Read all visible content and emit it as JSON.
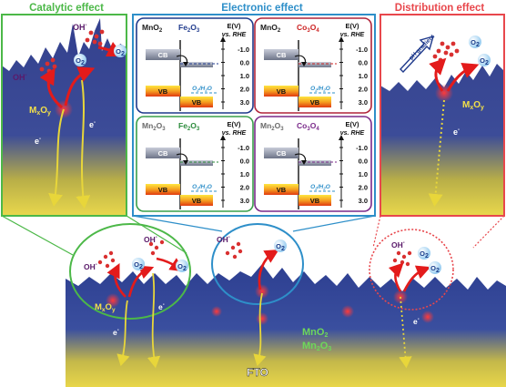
{
  "headers": {
    "catalytic": "Catalytic effect",
    "electronic": "Electronic effect",
    "distribution": "Distribution effect"
  },
  "colors": {
    "catalytic": "#4cb848",
    "electronic": "#2e8fc9",
    "distribution": "#e8474c",
    "oxide_primary": "#1a1a1a",
    "fe2o3": "#1f3a8c",
    "co3o4": "#cc2222",
    "mn2o3": "#6a6a6a",
    "co3o4_purple": "#7a2a8a"
  },
  "species": {
    "oh": "OH",
    "oh_sup": "-",
    "o2": "O",
    "o2_sub": "2",
    "electron": "e",
    "electron_sup": "-",
    "mxoy_m": "M",
    "mxoy_x": "x",
    "mxoy_o": "O",
    "mxoy_y": "y"
  },
  "electronic_panels": [
    {
      "a": "MnO",
      "a_sub": "2",
      "b": "Fe",
      "b_sub1": "2",
      "b_o": "O",
      "b_sub2": "3",
      "a_color": "#1a1a1a",
      "b_color": "#1f3a8c",
      "border": "#1f3a8c"
    },
    {
      "a": "MnO",
      "a_sub": "2",
      "b": "Co",
      "b_sub1": "3",
      "b_o": "O",
      "b_sub2": "4",
      "a_color": "#1a1a1a",
      "b_color": "#cc2222",
      "border": "#b0243a"
    },
    {
      "a": "Mn",
      "a_sub": "2",
      "a_o": "O",
      "a_sub2": "3",
      "b": "Fe",
      "b_sub1": "2",
      "b_o": "O",
      "b_sub2": "3",
      "a_color": "#6a6a6a",
      "b_color": "#2a8a3a",
      "border": "#3aa04a"
    },
    {
      "a": "Mn",
      "a_sub": "2",
      "a_o": "O",
      "a_sub2": "3",
      "b": "Co",
      "b_sub1": "3",
      "b_o": "O",
      "b_sub2": "4",
      "a_color": "#6a6a6a",
      "b_color": "#7a2a8a",
      "border": "#7a2a8a"
    }
  ],
  "energy_axis": {
    "title_e": "E(V)",
    "title_ref": "vs. RHE",
    "ticks": [
      "-1.0",
      "0.0",
      "1.0",
      "2.0",
      "3.0"
    ]
  },
  "bands": {
    "cb": "CB",
    "vb": "VB"
  },
  "redox_couple": "O",
  "redox_couple_sub": "2",
  "redox_couple_rest": "/H",
  "redox_couple_sub2": "2",
  "redox_couple_end": "O",
  "ph_gradient": "pH gradient",
  "bottom_labels": {
    "mno2": "MnO",
    "mno2_sub": "2",
    "mn2o3": "Mn",
    "mn2o3_sub1": "2",
    "mn2o3_o": "O",
    "mn2o3_sub2": "3",
    "fto": "FTO"
  }
}
